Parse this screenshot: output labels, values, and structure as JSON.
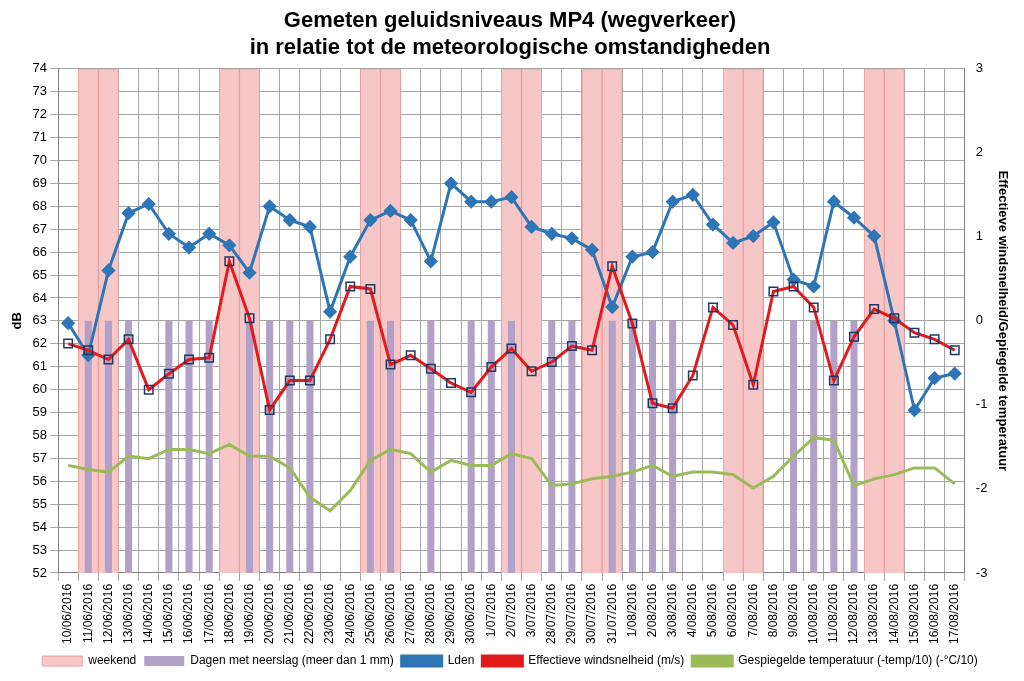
{
  "chart_data": {
    "type": "bar",
    "title": [
      "Gemeten geluidsniveaus MP4 (wegverkeer)",
      "in relatie tot de meteorologische omstandigheden"
    ],
    "y_label": "dB",
    "y2_label": "Effectieve windsnelheid/Gepiegelde temperatuur",
    "categories": [
      "10/06/2016",
      "11/06/2016",
      "12/06/2016",
      "13/06/2016",
      "14/06/2016",
      "15/06/2016",
      "16/06/2016",
      "17/06/2016",
      "18/06/2016",
      "19/06/2016",
      "20/06/2016",
      "21/06/2016",
      "22/06/2016",
      "23/06/2016",
      "24/06/2016",
      "25/06/2016",
      "26/06/2016",
      "27/06/2016",
      "28/06/2016",
      "29/06/2016",
      "30/06/2016",
      "1/07/2016",
      "2/07/2016",
      "3/07/2016",
      "28/07/2016",
      "29/07/2016",
      "30/07/2016",
      "31/07/2016",
      "1/08/2016",
      "2/08/2016",
      "3/08/2016",
      "4/08/2016",
      "5/08/2016",
      "6/08/2016",
      "7/08/2016",
      "8/08/2016",
      "9/08/2016",
      "10/08/2016",
      "11/08/2016",
      "12/08/2016",
      "13/08/2016",
      "14/08/2016",
      "15/08/2016",
      "16/08/2016",
      "17/08/2016"
    ],
    "series": [
      {
        "name": "weekend",
        "type": "bar",
        "color": "#f7c6c6",
        "values": [
          null,
          74,
          74,
          null,
          null,
          null,
          null,
          null,
          74,
          74,
          null,
          null,
          null,
          null,
          null,
          74,
          74,
          null,
          null,
          null,
          null,
          null,
          74,
          74,
          null,
          null,
          74,
          74,
          null,
          null,
          null,
          null,
          null,
          74,
          74,
          null,
          null,
          null,
          null,
          null,
          74,
          74,
          null,
          null,
          null
        ]
      },
      {
        "name": "Dagen met neerslag (meer dan 1 mm)",
        "type": "bar",
        "color": "#b1a0c7",
        "values": [
          null,
          63,
          63,
          63,
          null,
          63,
          63,
          63,
          null,
          63,
          63,
          63,
          63,
          null,
          null,
          63,
          63,
          null,
          63,
          null,
          63,
          63,
          63,
          null,
          63,
          63,
          null,
          63,
          63,
          63,
          63,
          null,
          null,
          null,
          null,
          null,
          63,
          63,
          63,
          63,
          null,
          null,
          null,
          null,
          null
        ]
      },
      {
        "name": "Lden",
        "type": "line",
        "color": "#2e75b6",
        "marker": "diamond",
        "line_style": "solid",
        "values": [
          62.9,
          61.5,
          65.2,
          67.7,
          68.1,
          66.8,
          66.2,
          66.8,
          66.3,
          65.1,
          68.0,
          67.4,
          67.1,
          63.4,
          65.8,
          67.4,
          67.8,
          67.4,
          65.6,
          69.0,
          68.2,
          68.2,
          68.4,
          67.1,
          66.8,
          66.6,
          66.1,
          63.6,
          65.8,
          66.0,
          68.2,
          68.5,
          67.2,
          66.4,
          66.7,
          67.3,
          64.8,
          64.5,
          68.2,
          67.5,
          66.7,
          63.0,
          59.1,
          60.5,
          60.7
        ]
      },
      {
        "name": "Effectieve windsnelheid (m/s)",
        "type": "line",
        "color": "#e31a1c",
        "marker": "square",
        "line_style": "solid",
        "axis": "y2",
        "values": [
          -0.27,
          -0.35,
          -0.46,
          -0.22,
          -0.82,
          -0.63,
          -0.46,
          -0.44,
          0.71,
          0.03,
          -1.06,
          -0.71,
          -0.71,
          -0.22,
          0.41,
          0.38,
          -0.52,
          -0.41,
          -0.57,
          -0.74,
          -0.85,
          -0.55,
          -0.33,
          -0.6,
          -0.49,
          -0.3,
          -0.35,
          0.65,
          -0.03,
          -0.98,
          -1.04,
          -0.65,
          0.16,
          -0.05,
          -0.76,
          0.35,
          0.41,
          0.16,
          -0.71,
          -0.19,
          0.14,
          0.03,
          -0.14,
          -0.22,
          -0.35
        ]
      },
      {
        "name": "Gespiegelde temperatuur (-temp/10) (-°C/10)",
        "type": "line",
        "color": "#9bbb59",
        "marker": "none",
        "line_style": "solid",
        "axis": "y2",
        "values": [
          -1.72,
          -1.77,
          -1.8,
          -1.61,
          -1.64,
          -1.53,
          -1.53,
          -1.58,
          -1.47,
          -1.61,
          -1.61,
          -1.75,
          -2.1,
          -2.26,
          -2.02,
          -1.66,
          -1.53,
          -1.58,
          -1.8,
          -1.66,
          -1.72,
          -1.72,
          -1.58,
          -1.64,
          -1.96,
          -1.94,
          -1.88,
          -1.85,
          -1.8,
          -1.72,
          -1.85,
          -1.8,
          -1.8,
          -1.83,
          -1.99,
          -1.85,
          -1.61,
          -1.39,
          -1.42,
          -1.96,
          -1.88,
          -1.83,
          -1.75,
          -1.75,
          -1.94
        ]
      }
    ],
    "ylim": [
      52,
      74
    ],
    "yticks": [
      52,
      53,
      54,
      55,
      56,
      57,
      58,
      59,
      60,
      61,
      62,
      63,
      64,
      65,
      66,
      67,
      68,
      69,
      70,
      71,
      72,
      73,
      74
    ],
    "y2lim": [
      -3,
      3
    ],
    "y2ticks": [
      -3,
      -2,
      -1,
      0,
      1,
      2,
      3
    ],
    "grid": true,
    "legend": "bottom"
  }
}
